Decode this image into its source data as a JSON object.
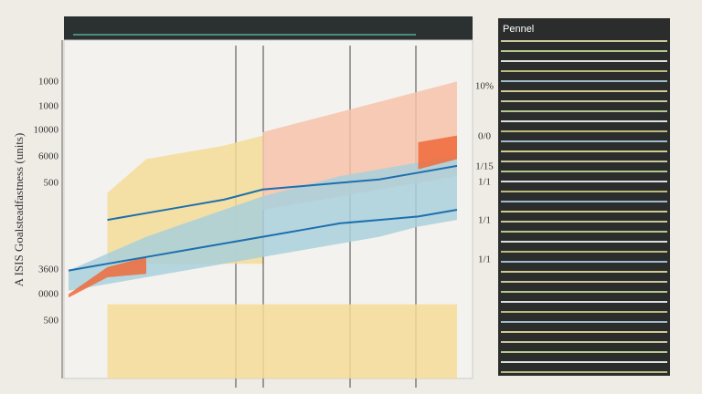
{
  "chart_data": {
    "type": "area",
    "y_axis_label": "A ISIS Goalsteadfastness (units)",
    "y_labels": [
      "1000",
      "1000",
      "10000",
      "6000",
      "500",
      "3600",
      "0000",
      "500"
    ],
    "right_labels": [
      "10%",
      "0/0",
      "1/15",
      "1/1",
      "1/1",
      "1/1"
    ],
    "panel_title": "Pennel",
    "x": [
      0,
      1,
      2,
      3,
      4,
      5,
      6,
      7,
      8,
      9,
      10
    ],
    "xlim": [
      0,
      10
    ],
    "ylim": [
      0,
      100
    ],
    "series": [
      {
        "color": "#f3dc96",
        "upper": [
          null,
          55,
          65,
          67,
          69,
          72,
          null,
          null,
          null,
          null,
          null
        ],
        "lower": [
          null,
          34,
          34,
          34,
          34,
          34,
          null,
          null,
          null,
          null,
          null
        ]
      },
      {
        "color": "#f6c3aa",
        "upper": [
          null,
          null,
          null,
          null,
          null,
          73,
          76,
          79,
          82,
          85,
          88
        ],
        "lower": [
          null,
          null,
          null,
          null,
          null,
          50,
          52,
          54,
          56,
          58,
          60
        ]
      },
      {
        "color": "#a9d0dc",
        "upper": [
          32,
          37,
          42,
          46,
          50,
          54,
          57,
          60,
          62,
          64,
          66
        ],
        "lower": [
          26,
          28,
          30,
          32,
          34,
          36,
          38,
          40,
          42,
          45,
          47
        ]
      },
      {
        "color": "#ee6a3a",
        "upper": [
          25,
          33,
          36,
          null,
          null,
          null,
          null,
          null,
          null,
          70,
          72
        ],
        "lower": [
          24,
          30,
          31,
          null,
          null,
          null,
          null,
          null,
          null,
          62,
          65
        ]
      },
      {
        "color": "#f5dc97",
        "upper": [
          null,
          22,
          22,
          22,
          22,
          22,
          22,
          22,
          22,
          22,
          22
        ],
        "lower": [
          null,
          0,
          0,
          0,
          0,
          0,
          0,
          0,
          0,
          0,
          0
        ]
      }
    ],
    "lines": [
      {
        "color": "#1d6fae",
        "values": [
          null,
          47,
          49,
          51,
          53,
          56,
          57,
          58,
          59,
          61,
          63
        ]
      },
      {
        "color": "#1d6fae",
        "values": [
          32,
          34,
          36,
          38,
          40,
          42,
          44,
          46,
          47,
          48,
          50
        ]
      }
    ]
  }
}
